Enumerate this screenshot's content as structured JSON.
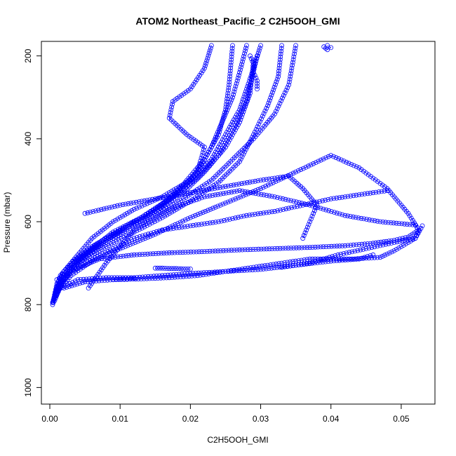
{
  "chart_data": {
    "type": "scatter",
    "title": "ATOM2 Northeast_Pacific_2 C2H5OOH_GMI",
    "xlabel": "C2H5OOH_GMI",
    "ylabel": "Pressure (mbar)",
    "xlim": [
      -0.0012,
      0.0548
    ],
    "ylim": [
      1040,
      165
    ],
    "y_inverted": true,
    "x_ticks": [
      0.0,
      0.01,
      0.02,
      0.03,
      0.04,
      0.05
    ],
    "x_tick_labels": [
      "0.00",
      "0.01",
      "0.02",
      "0.03",
      "0.04",
      "0.05"
    ],
    "y_ticks": [
      200,
      400,
      600,
      800,
      1000
    ],
    "y_tick_labels": [
      "200",
      "400",
      "600",
      "800",
      "1000"
    ],
    "grid": false,
    "marker": "open-circle",
    "line_style": "solid",
    "color": "#0000ff",
    "series": [
      {
        "x": [
          0.0004,
          0.0008,
          0.0015,
          0.003,
          0.006,
          0.009,
          0.012,
          0.015,
          0.018,
          0.021,
          0.023,
          0.0245,
          0.026,
          0.027,
          0.028
        ],
        "y": [
          800,
          770,
          730,
          700,
          660,
          630,
          600,
          570,
          530,
          480,
          420,
          360,
          300,
          240,
          175
        ]
      },
      {
        "x": [
          0.0004,
          0.001,
          0.002,
          0.004,
          0.007,
          0.01,
          0.013,
          0.016,
          0.019,
          0.022,
          0.024,
          0.025,
          0.0255,
          0.026
        ],
        "y": [
          795,
          760,
          720,
          690,
          650,
          620,
          590,
          560,
          510,
          450,
          390,
          330,
          270,
          175
        ]
      },
      {
        "x": [
          0.0005,
          0.001,
          0.002,
          0.004,
          0.006,
          0.009,
          0.012,
          0.016,
          0.02,
          0.023,
          0.025,
          0.027,
          0.028,
          0.029,
          0.03
        ],
        "y": [
          790,
          750,
          720,
          680,
          640,
          600,
          570,
          540,
          500,
          450,
          390,
          330,
          280,
          230,
          175
        ]
      },
      {
        "x": [
          0.0006,
          0.0015,
          0.003,
          0.006,
          0.009,
          0.013,
          0.017,
          0.021,
          0.024,
          0.026,
          0.028,
          0.0295
        ],
        "y": [
          785,
          745,
          705,
          665,
          625,
          590,
          545,
          495,
          440,
          380,
          310,
          200
        ]
      },
      {
        "x": [
          0.0008,
          0.002,
          0.004,
          0.008,
          0.012,
          0.016,
          0.02,
          0.024,
          0.027,
          0.029,
          0.031,
          0.0325,
          0.033
        ],
        "y": [
          780,
          740,
          700,
          660,
          625,
          590,
          550,
          505,
          455,
          390,
          320,
          250,
          175
        ]
      },
      {
        "x": [
          0.0007,
          0.0015,
          0.003,
          0.005,
          0.008,
          0.011,
          0.015,
          0.018,
          0.021,
          0.022,
          0.0195,
          0.017,
          0.0175,
          0.02,
          0.022,
          0.023
        ],
        "y": [
          790,
          755,
          715,
          680,
          645,
          610,
          575,
          535,
          480,
          420,
          390,
          350,
          310,
          280,
          230,
          175
        ]
      },
      {
        "x": [
          0.0009,
          0.002,
          0.004,
          0.007,
          0.011,
          0.015,
          0.019,
          0.023,
          0.026,
          0.029,
          0.032,
          0.034,
          0.035
        ],
        "y": [
          780,
          740,
          700,
          660,
          620,
          585,
          545,
          500,
          450,
          400,
          340,
          270,
          175
        ]
      },
      {
        "x": [
          0.0008,
          0.002,
          0.004,
          0.007,
          0.011,
          0.015,
          0.019,
          0.022,
          0.025,
          0.027,
          0.0285,
          0.029
        ],
        "y": [
          775,
          735,
          695,
          655,
          615,
          575,
          530,
          480,
          420,
          360,
          290,
          210
        ]
      },
      {
        "x": [
          0.0005,
          0.001,
          0.003,
          0.007,
          0.012,
          0.017,
          0.022,
          0.027,
          0.032,
          0.037,
          0.042,
          0.046,
          0.049,
          0.051,
          0.0525,
          0.052,
          0.047,
          0.042,
          0.037,
          0.032,
          0.027,
          0.022,
          0.017,
          0.012,
          0.008,
          0.0055
        ],
        "y": [
          795,
          760,
          720,
          690,
          680,
          675,
          672,
          668,
          665,
          662,
          658,
          652,
          645,
          637,
          620,
          608,
          600,
          585,
          560,
          540,
          525,
          540,
          570,
          620,
          700,
          760
        ]
      },
      {
        "x": [
          0.001,
          0.003,
          0.006,
          0.01,
          0.015,
          0.02,
          0.025,
          0.03,
          0.035,
          0.04,
          0.044,
          0.048,
          0.051,
          0.0525,
          0.052,
          0.049,
          0.045,
          0.041,
          0.037,
          0.033
        ],
        "y": [
          770,
          730,
          695,
          665,
          630,
          590,
          555,
          520,
          480,
          440,
          470,
          520,
          580,
          620,
          640,
          650,
          665,
          680,
          700,
          710
        ]
      },
      {
        "x": [
          0.001,
          0.004,
          0.008,
          0.012,
          0.016,
          0.02,
          0.025,
          0.03,
          0.035,
          0.04,
          0.044,
          0.046
        ],
        "y": [
          765,
          740,
          735,
          735,
          730,
          725,
          720,
          715,
          705,
          695,
          690,
          680
        ]
      },
      {
        "x": [
          0.002,
          0.005,
          0.009,
          0.013,
          0.017,
          0.021,
          0.025,
          0.029,
          0.033,
          0.037,
          0.04,
          0.043,
          0.045,
          0.047,
          0.049,
          0.052,
          0.053
        ],
        "y": [
          760,
          745,
          740,
          738,
          735,
          730,
          720,
          710,
          700,
          690,
          690,
          690,
          688,
          686,
          670,
          640,
          610
        ]
      },
      {
        "x": [
          0.001,
          0.005,
          0.009,
          0.012,
          0.016,
          0.02,
          0.024,
          0.028,
          0.032,
          0.036,
          0.04,
          0.044,
          0.048
        ],
        "y": [
          740,
          700,
          665,
          640,
          620,
          610,
          600,
          585,
          575,
          560,
          545,
          535,
          525
        ]
      },
      {
        "x": [
          0.005,
          0.01,
          0.015,
          0.02,
          0.025,
          0.03,
          0.034,
          0.036,
          0.038,
          0.037,
          0.036
        ],
        "y": [
          580,
          560,
          545,
          530,
          515,
          500,
          490,
          520,
          560,
          600,
          640
        ]
      },
      {
        "x": [
          0.015,
          0.016,
          0.017,
          0.018,
          0.019,
          0.02
        ],
        "y": [
          712,
          712,
          713,
          713,
          714,
          714
        ]
      },
      {
        "x": [
          0.009,
          0.0095,
          0.01,
          0.0105,
          0.011,
          0.0115,
          0.012
        ],
        "y": [
          740,
          739,
          739,
          738,
          738,
          737,
          737
        ]
      },
      {
        "x": [
          0.0395,
          0.04,
          0.0395,
          0.039
        ],
        "y": [
          175,
          180,
          185,
          178
        ]
      },
      {
        "x": [
          0.0285,
          0.029,
          0.029,
          0.0295,
          0.0295
        ],
        "y": [
          200,
          220,
          240,
          260,
          280
        ]
      }
    ]
  }
}
